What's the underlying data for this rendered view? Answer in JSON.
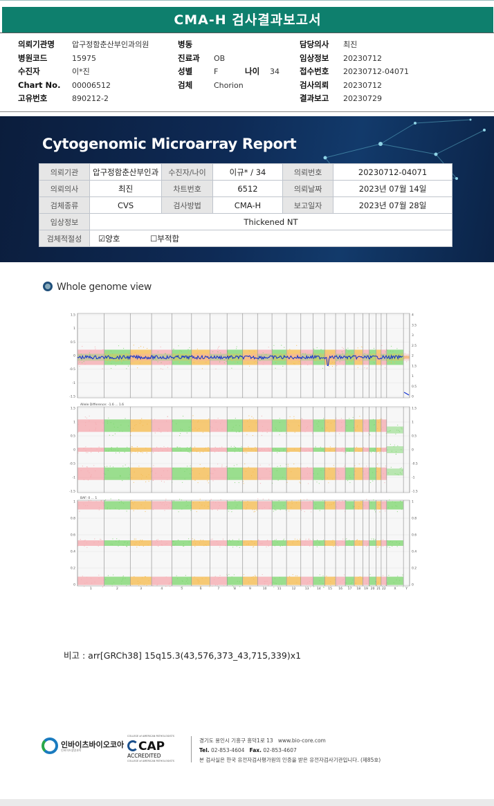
{
  "title": "CMA-H 검사결과보고서",
  "header": {
    "col1": [
      {
        "label": "의뢰기관명",
        "value": "압구정함춘산부인과의원"
      },
      {
        "label": "병원코드",
        "value": "15975"
      },
      {
        "label": "수진자",
        "value": "이*진"
      },
      {
        "label": "Chart No.",
        "value": "00006512"
      },
      {
        "label": "고유번호",
        "value": "890212-2"
      }
    ],
    "col2": [
      {
        "label": "병동",
        "value": ""
      },
      {
        "label": "진료과",
        "value": "OB"
      },
      {
        "label": "성별",
        "value": "F"
      },
      {
        "label": "검체",
        "value": "Chorion"
      }
    ],
    "age_label": "나이",
    "age_value": "34",
    "col3": [
      {
        "label": "담당의사",
        "value": "최진"
      },
      {
        "label": "임상정보",
        "value": "20230712"
      },
      {
        "label": "접수번호",
        "value": "20230712-04071"
      },
      {
        "label": "검사의뢰",
        "value": "20230712"
      },
      {
        "label": "결과보고",
        "value": "20230729"
      }
    ]
  },
  "report": {
    "title": "Cytogenomic Microarray Report",
    "rows": [
      [
        "의뢰기관",
        "압구정함춘산부인과",
        "수진자/나이",
        "이규* / 34",
        "의뢰번호",
        "20230712-04071"
      ],
      [
        "의뢰의사",
        "최진",
        "차트번호",
        "6512",
        "의뢰날짜",
        "2023년 07월 14일"
      ],
      [
        "검체종류",
        "CVS",
        "검사방법",
        "CMA-H",
        "보고일자",
        "2023년 07월 28일"
      ]
    ],
    "clinical_label": "임상정보",
    "clinical_value": "Thickened NT",
    "adequacy_label": "검체적절성",
    "adequacy_ok": "양호",
    "adequacy_ng": "부적합",
    "check_mark": "☑",
    "uncheck_mark": "☐"
  },
  "whole_genome": {
    "title": "Whole genome view",
    "panel2_label": "Allele Difference: -1.6 ... 1.6",
    "panel3_label": "BAF: 0 ... 1",
    "panel1_left_ticks": [
      "1.5",
      "1",
      "0.5",
      "0",
      "-0.5",
      "-1",
      "-1.5"
    ],
    "panel1_right_ticks": [
      "4",
      "3.5",
      "3",
      "2.5",
      "2",
      "1.5",
      "1",
      "0.5",
      "0"
    ],
    "panel2_left_ticks": [
      "1.5",
      "1",
      "0.5",
      "0",
      "-0.5",
      "-1",
      "-1.5"
    ],
    "panel2_right_ticks": [
      "1.5",
      "1",
      "0.5",
      "0",
      "-0.5",
      "-1",
      "-1.5"
    ],
    "panel3_left_ticks": [
      "1",
      "0.8",
      "0.6",
      "0.4",
      "0.2",
      "0"
    ],
    "panel3_right_ticks": [
      "1",
      "0.8",
      "0.6",
      "0.4",
      "0.2",
      "0"
    ],
    "chromosomes": [
      "1",
      "2",
      "3",
      "4",
      "5",
      "6",
      "7",
      "8",
      "9",
      "10",
      "11",
      "12",
      "13",
      "14",
      "15",
      "16",
      "17",
      "18",
      "19",
      "20",
      "21",
      "22",
      "X",
      "Y"
    ],
    "colors": {
      "pink": "#f5a8ad",
      "green": "#7bd66b",
      "orange": "#f5b94a",
      "blue": "#0a2bd1",
      "grid": "#dddddd",
      "panel_bg": "#f7f7f7"
    }
  },
  "note": "비고 : arr[GRCh38] 15q15.3(43,576,373_43,715,339)x1",
  "footer": {
    "logo_name": "인바이츠바이오코아",
    "logo_sub": "인바이츠생명과학",
    "cap_top": "COLLEGE of AMERICAN PATHOLOGISTS",
    "cap_big": "CAP",
    "cap_acc": "ACCREDITED",
    "cap_bottom": "COLLEGE of AMERICAN PATHOLOGISTS",
    "address": "경기도 용인시 기흥구 흥덕1로 13",
    "website": "www.bio-core.com",
    "tel_label": "Tel.",
    "tel": "02-853-4604",
    "fax_label": "Fax.",
    "fax": "02-853-4607",
    "cert": "본 검사실은 한국 유전자검사평가원의 인증을 받은 유전자검사기관입니다. (제85호)"
  }
}
